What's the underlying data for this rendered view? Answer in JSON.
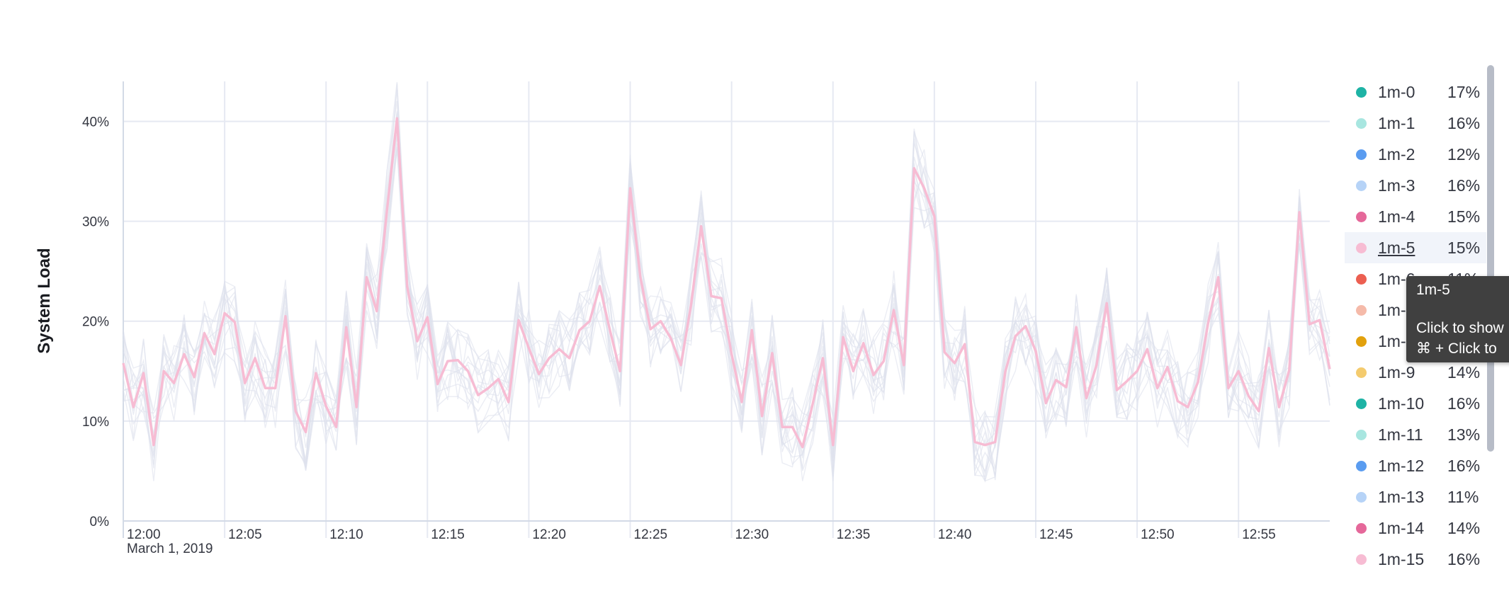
{
  "chart_data": {
    "type": "line",
    "ylabel": "System Load",
    "ylim": [
      0,
      44
    ],
    "y_ticks": [
      "0%",
      "10%",
      "20%",
      "30%",
      "40%"
    ],
    "y_tick_values": [
      0,
      10,
      20,
      30,
      40
    ],
    "x_ticks": [
      "12:00",
      "12:05",
      "12:10",
      "12:15",
      "12:20",
      "12:25",
      "12:30",
      "12:35",
      "12:40",
      "12:45",
      "12:50",
      "12:55"
    ],
    "x_date_label": "March 1, 2019",
    "x_range_minutes": [
      0,
      59.5
    ],
    "grid": true,
    "legend_position": "right",
    "highlighted_series": "1m-5",
    "highlight_color": "#f7bcd3",
    "background_series_color": "#dde1ec",
    "series_highlight": {
      "name": "1m-5",
      "x_minutes": [
        0,
        0.5,
        1,
        1.5,
        2,
        2.5,
        3,
        3.5,
        4,
        4.5,
        5,
        5.5,
        6,
        6.5,
        7,
        7.5,
        8,
        8.5,
        9,
        9.5,
        10,
        10.5,
        11,
        11.5,
        12,
        12.5,
        13,
        13.5,
        14,
        14.5,
        15,
        15.5,
        16,
        16.5,
        17,
        17.5,
        18,
        18.5,
        19,
        19.5,
        20,
        20.5,
        21,
        21.5,
        22,
        22.5,
        23,
        23.5,
        24,
        24.5,
        25,
        25.5,
        26,
        26.5,
        27,
        27.5,
        28,
        28.5,
        29,
        29.5,
        30,
        30.5,
        31,
        31.5,
        32,
        32.5,
        33,
        33.5,
        34,
        34.5,
        35,
        35.5,
        36,
        36.5,
        37,
        37.5,
        38,
        38.5,
        39,
        39.5,
        40,
        40.5,
        41,
        41.5,
        42,
        42.5,
        43,
        43.5,
        44,
        44.5,
        45,
        45.5,
        46,
        46.5,
        47,
        47.5,
        48,
        48.5,
        49,
        49.5,
        50,
        50.5,
        51,
        51.5,
        52,
        52.5,
        53,
        53.5,
        54,
        54.5,
        55,
        55.5,
        56,
        56.5,
        57,
        57.5,
        58,
        58.5,
        59,
        59.5
      ],
      "values": [
        15.8,
        11.4,
        14.8,
        7.6,
        15,
        13.8,
        16.7,
        14.4,
        18.8,
        16.7,
        20.8,
        19.9,
        13.8,
        16.3,
        13.3,
        13.3,
        20.5,
        11,
        8.9,
        14.8,
        11.5,
        9.4,
        19.4,
        11.4,
        24.4,
        21,
        31,
        40.3,
        23.5,
        18,
        20.4,
        13.7,
        16,
        16.1,
        15,
        12.6,
        13.3,
        14.2,
        11.9,
        20.1,
        17.3,
        14.7,
        16.3,
        17.2,
        16.3,
        19.1,
        20,
        23.5,
        19.1,
        15,
        33.3,
        24.4,
        19.2,
        20,
        18.3,
        15.6,
        21.6,
        29.5,
        22.5,
        22.3,
        16.7,
        11.9,
        19.1,
        10.5,
        16.8,
        9.4,
        9.4,
        7.4,
        11.7,
        16.3,
        7.6,
        18.4,
        15,
        17.8,
        14.6,
        16,
        21.1,
        15.6,
        35.3,
        33.3,
        30.5,
        16.9,
        15.8,
        17.7,
        7.9,
        7.6,
        7.9,
        15,
        18.5,
        19.5,
        17,
        11.8,
        14.1,
        13.4,
        19.4,
        12.3,
        15.6,
        21.8,
        13.1,
        14,
        15,
        17.2,
        13.3,
        15.4,
        12,
        11.4,
        13.9,
        19.8,
        24.4,
        13.3,
        15,
        12.5,
        11,
        17.3,
        11.4,
        15.1,
        30.9,
        19.7,
        20.1,
        15.2
      ]
    }
  },
  "legend": [
    {
      "name": "1m-0",
      "value": "17%",
      "color": "#1eb3a5"
    },
    {
      "name": "1m-1",
      "value": "16%",
      "color": "#a8e6e0"
    },
    {
      "name": "1m-2",
      "value": "12%",
      "color": "#5a9cf0"
    },
    {
      "name": "1m-3",
      "value": "16%",
      "color": "#b6d3f7"
    },
    {
      "name": "1m-4",
      "value": "15%",
      "color": "#e5689a"
    },
    {
      "name": "1m-5",
      "value": "15%",
      "color": "#f7bcd3"
    },
    {
      "name": "1m-6",
      "value": "11%",
      "color": "#ec5f51"
    },
    {
      "name": "1m-7",
      "value": "",
      "color": "#f5baa9"
    },
    {
      "name": "1m-8",
      "value": "",
      "color": "#e2a10d"
    },
    {
      "name": "1m-9",
      "value": "14%",
      "color": "#f4cb6e"
    },
    {
      "name": "1m-10",
      "value": "16%",
      "color": "#1eb3a5"
    },
    {
      "name": "1m-11",
      "value": "13%",
      "color": "#a8e6e0"
    },
    {
      "name": "1m-12",
      "value": "16%",
      "color": "#5a9cf0"
    },
    {
      "name": "1m-13",
      "value": "11%",
      "color": "#b6d3f7"
    },
    {
      "name": "1m-14",
      "value": "14%",
      "color": "#e5689a"
    },
    {
      "name": "1m-15",
      "value": "16%",
      "color": "#f7bcd3"
    }
  ],
  "tooltip": {
    "title": "1m-5",
    "line1": "Click to show",
    "line2": "⌘ + Click to"
  }
}
